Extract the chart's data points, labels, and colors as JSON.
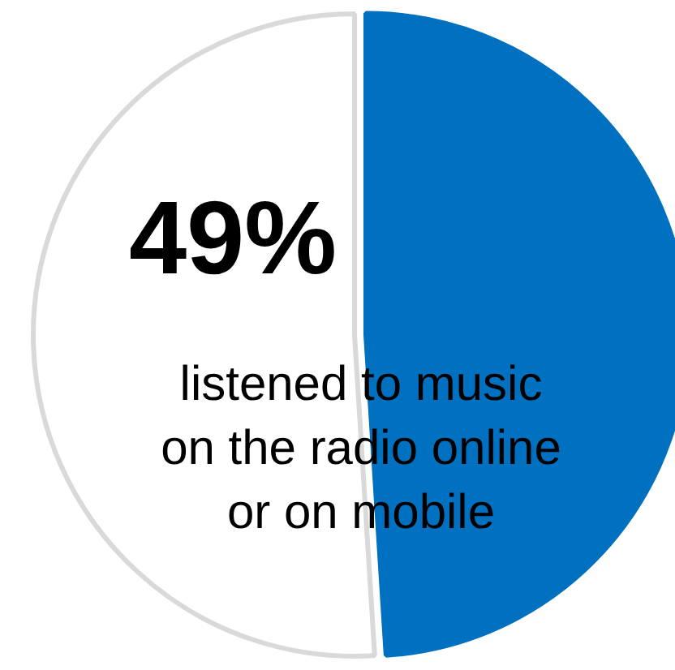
{
  "chart_data": {
    "type": "pie",
    "categories": [
      null,
      null
    ],
    "values": [
      49,
      51
    ],
    "colors": [
      "#0070c0",
      "#ffffff"
    ],
    "annotations": [
      "49%",
      "listened to music on the radio online or on mobile"
    ]
  }
}
